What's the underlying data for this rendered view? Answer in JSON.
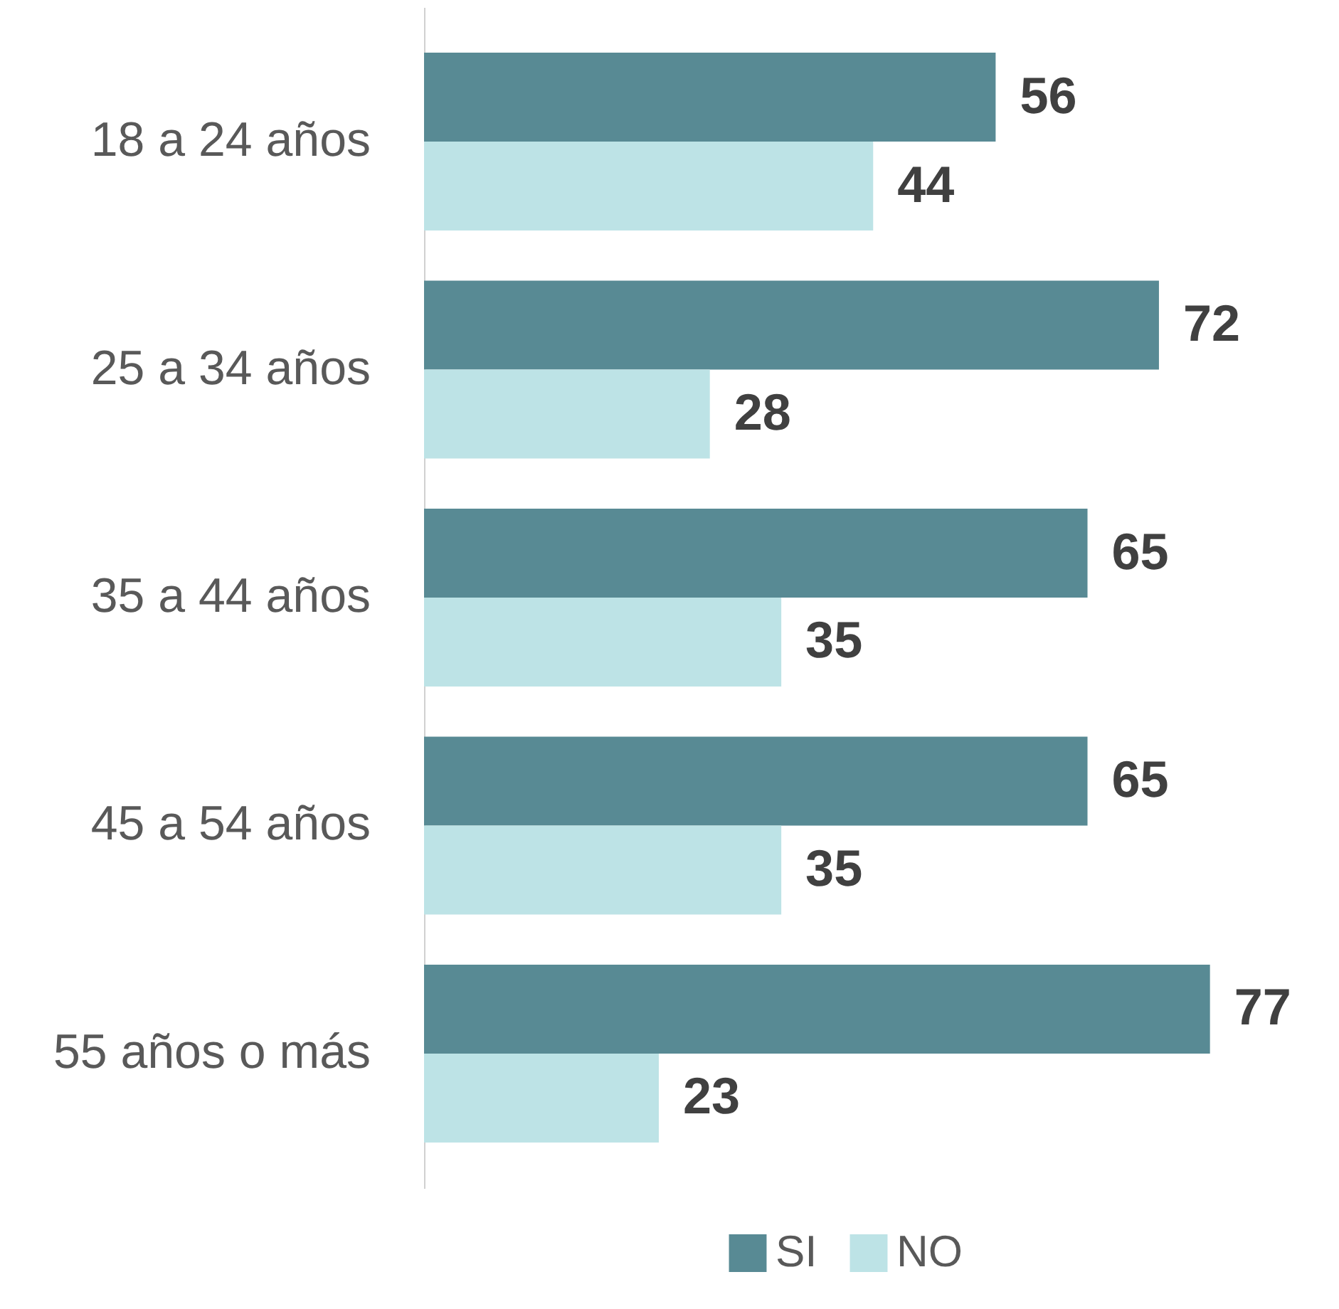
{
  "chart_data": {
    "type": "bar",
    "orientation": "horizontal",
    "categories": [
      "18 a 24 años",
      "25 a 34 años",
      "35 a 44 años",
      "45 a 54 años",
      "55 años o más"
    ],
    "series": [
      {
        "name": "SI",
        "color": "#588a94",
        "values": [
          56,
          72,
          65,
          65,
          77
        ]
      },
      {
        "name": "NO",
        "color": "#bde3e6",
        "values": [
          44,
          28,
          35,
          35,
          23
        ]
      }
    ],
    "data_labels": true,
    "legend": "bottom"
  }
}
